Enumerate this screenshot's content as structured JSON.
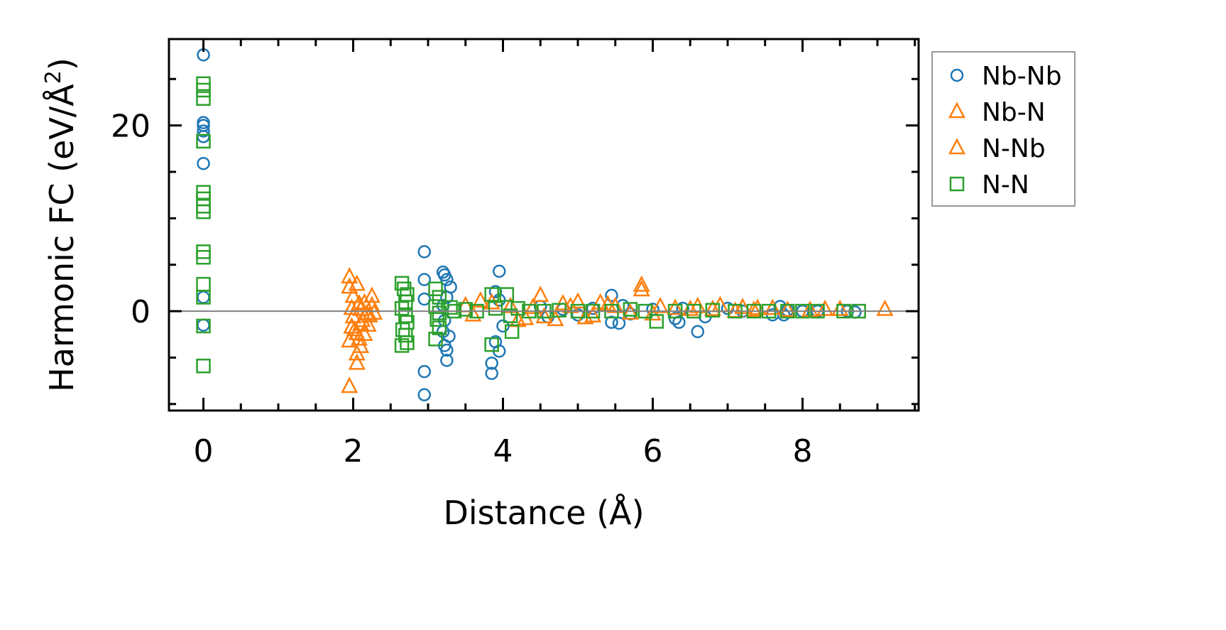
{
  "chart_data": {
    "type": "scatter",
    "title": "",
    "xlabel": "Distance (Å)",
    "ylabel": "Harmonic FC (eV/Å²)",
    "ylabel_main": "Harmonic FC (eV/Å",
    "ylabel_sup": "2",
    "ylabel_close": ")",
    "xlim": [
      -0.46,
      9.55
    ],
    "ylim": [
      -10.7,
      29.3
    ],
    "xticks": [
      0,
      2,
      4,
      6,
      8
    ],
    "xtick_labels": [
      "0",
      "2",
      "4",
      "6",
      "8"
    ],
    "yticks": [
      0,
      20
    ],
    "ytick_labels": [
      "0",
      "20"
    ],
    "x_minor_step": 0.5,
    "y_minor_step": 5,
    "zero_line": true,
    "grid": false,
    "legend_position": "outside-right-top",
    "series": [
      {
        "name": "Nb-Nb",
        "marker": "circle",
        "color": "#1f77b4",
        "points": [
          [
            0,
            27.6
          ],
          [
            0,
            20.3
          ],
          [
            0,
            20.0
          ],
          [
            0,
            19.4
          ],
          [
            0,
            18.8
          ],
          [
            0,
            15.9
          ],
          [
            0,
            1.5
          ],
          [
            0,
            -1.5
          ],
          [
            2.95,
            6.4
          ],
          [
            2.95,
            3.4
          ],
          [
            2.95,
            1.3
          ],
          [
            2.95,
            -6.5
          ],
          [
            2.95,
            -9.0
          ],
          [
            3.2,
            4.2
          ],
          [
            3.22,
            3.9
          ],
          [
            3.25,
            3.4
          ],
          [
            3.3,
            2.6
          ],
          [
            3.25,
            1.5
          ],
          [
            3.2,
            0.6
          ],
          [
            3.22,
            -1.0
          ],
          [
            3.2,
            -2.2
          ],
          [
            3.28,
            -2.7
          ],
          [
            3.22,
            -3.7
          ],
          [
            3.25,
            -4.2
          ],
          [
            3.25,
            -5.3
          ],
          [
            3.85,
            -5.6
          ],
          [
            3.85,
            -6.7
          ],
          [
            3.95,
            4.3
          ],
          [
            3.9,
            2.1
          ],
          [
            3.95,
            1.2
          ],
          [
            3.9,
            -3.3
          ],
          [
            3.95,
            -4.3
          ],
          [
            4.0,
            -1.6
          ],
          [
            4.5,
            0.5
          ],
          [
            4.6,
            -0.6
          ],
          [
            4.8,
            0.2
          ],
          [
            5.0,
            -0.4
          ],
          [
            5.2,
            0.3
          ],
          [
            5.45,
            1.7
          ],
          [
            5.45,
            -1.2
          ],
          [
            5.55,
            -1.3
          ],
          [
            5.6,
            0.6
          ],
          [
            5.7,
            -0.3
          ],
          [
            6.0,
            0.2
          ],
          [
            6.3,
            -0.8
          ],
          [
            6.35,
            -1.2
          ],
          [
            6.4,
            0.3
          ],
          [
            6.6,
            -2.2
          ],
          [
            6.7,
            -0.6
          ],
          [
            7.0,
            0.3
          ],
          [
            7.2,
            0.0
          ],
          [
            7.6,
            -0.4
          ],
          [
            7.7,
            0.5
          ],
          [
            7.75,
            -0.4
          ],
          [
            7.8,
            0.1
          ],
          [
            8.0,
            0.0
          ],
          [
            8.2,
            0.0
          ],
          [
            8.6,
            0.0
          ],
          [
            8.7,
            -0.1
          ]
        ]
      },
      {
        "name": "Nb-N",
        "marker": "triangle",
        "color": "#ff7f0e",
        "points": [
          [
            1.95,
            3.7
          ],
          [
            1.95,
            2.6
          ],
          [
            2.05,
            2.9
          ],
          [
            2.0,
            1.6
          ],
          [
            2.08,
            0.8
          ],
          [
            2.1,
            0.2
          ],
          [
            2.0,
            -0.6
          ],
          [
            2.12,
            -1.0
          ],
          [
            1.98,
            -1.7
          ],
          [
            2.05,
            -2.4
          ],
          [
            1.95,
            -3.2
          ],
          [
            2.1,
            -3.8
          ],
          [
            2.05,
            -4.6
          ],
          [
            2.05,
            -5.6
          ],
          [
            1.95,
            -8.1
          ],
          [
            2.25,
            1.6
          ],
          [
            2.25,
            0.6
          ],
          [
            2.22,
            -0.5
          ],
          [
            2.2,
            -1.5
          ],
          [
            2.15,
            -2.5
          ],
          [
            2.28,
            -0.2
          ],
          [
            3.5,
            0.6
          ],
          [
            3.7,
            1.1
          ],
          [
            4.1,
            0.5
          ],
          [
            4.3,
            -0.8
          ],
          [
            4.5,
            1.7
          ],
          [
            4.55,
            -0.6
          ],
          [
            4.8,
            0.8
          ],
          [
            5.0,
            1.0
          ],
          [
            5.1,
            -0.7
          ],
          [
            5.3,
            0.9
          ],
          [
            5.5,
            0.5
          ],
          [
            5.85,
            2.8
          ],
          [
            5.85,
            2.3
          ],
          [
            6.1,
            0.5
          ],
          [
            6.3,
            0.3
          ],
          [
            6.6,
            0.5
          ],
          [
            6.9,
            0.6
          ],
          [
            7.2,
            0.4
          ],
          [
            7.4,
            0.3
          ],
          [
            7.6,
            0.3
          ],
          [
            8.3,
            0.2
          ],
          [
            8.5,
            0.2
          ],
          [
            9.1,
            0.2
          ]
        ]
      },
      {
        "name": "N-Nb",
        "marker": "triangle",
        "color": "#ff7f0e",
        "points": [
          [
            1.98,
            0.3
          ],
          [
            2.02,
            -2.0
          ],
          [
            2.08,
            -3.0
          ],
          [
            2.15,
            0.9
          ],
          [
            2.18,
            -0.3
          ],
          [
            2.1,
            -1.4
          ],
          [
            3.6,
            -0.4
          ],
          [
            3.85,
            0.9
          ],
          [
            4.2,
            -1.0
          ],
          [
            4.4,
            0.4
          ],
          [
            4.7,
            -0.9
          ],
          [
            4.9,
            0.5
          ],
          [
            5.2,
            -0.5
          ],
          [
            5.4,
            0.7
          ],
          [
            5.7,
            -0.2
          ],
          [
            6.0,
            -0.3
          ],
          [
            6.5,
            0.2
          ],
          [
            6.8,
            0.2
          ],
          [
            7.1,
            0.0
          ],
          [
            7.35,
            0.1
          ],
          [
            7.8,
            0.1
          ],
          [
            8.1,
            0.1
          ]
        ]
      },
      {
        "name": "N-N",
        "marker": "square",
        "color": "#2ca02c",
        "points": [
          [
            0,
            24.5
          ],
          [
            0,
            23.8
          ],
          [
            0,
            22.9
          ],
          [
            0,
            18.3
          ],
          [
            0,
            12.8
          ],
          [
            0,
            12.1
          ],
          [
            0,
            11.3
          ],
          [
            0,
            10.7
          ],
          [
            0,
            6.4
          ],
          [
            0,
            5.8
          ],
          [
            0,
            2.9
          ],
          [
            0,
            1.5
          ],
          [
            0,
            -1.6
          ],
          [
            0,
            -5.9
          ],
          [
            2.65,
            3.0
          ],
          [
            2.68,
            2.4
          ],
          [
            2.72,
            1.8
          ],
          [
            2.7,
            1.0
          ],
          [
            2.65,
            0.3
          ],
          [
            2.7,
            -0.5
          ],
          [
            2.72,
            -1.2
          ],
          [
            2.66,
            -2.0
          ],
          [
            2.7,
            -2.6
          ],
          [
            2.65,
            -3.7
          ],
          [
            2.72,
            -3.4
          ],
          [
            3.1,
            2.4
          ],
          [
            3.15,
            1.5
          ],
          [
            3.1,
            0.5
          ],
          [
            3.15,
            -0.2
          ],
          [
            3.12,
            -0.9
          ],
          [
            3.15,
            -1.8
          ],
          [
            3.1,
            -3.0
          ],
          [
            3.3,
            0.4
          ],
          [
            3.35,
            0.0
          ],
          [
            3.5,
            0.2
          ],
          [
            3.65,
            0.0
          ],
          [
            3.85,
            1.8
          ],
          [
            3.85,
            -3.6
          ],
          [
            3.9,
            0.3
          ],
          [
            4.05,
            1.8
          ],
          [
            4.1,
            -0.5
          ],
          [
            4.12,
            -2.2
          ],
          [
            4.2,
            0.3
          ],
          [
            4.35,
            0.0
          ],
          [
            4.55,
            0.0
          ],
          [
            4.75,
            0.1
          ],
          [
            5.0,
            0.0
          ],
          [
            5.2,
            0.0
          ],
          [
            5.45,
            0.0
          ],
          [
            5.7,
            0.2
          ],
          [
            5.9,
            0.0
          ],
          [
            6.05,
            -1.1
          ],
          [
            6.3,
            0.0
          ],
          [
            6.55,
            0.0
          ],
          [
            6.8,
            0.1
          ],
          [
            7.1,
            0.0
          ],
          [
            7.35,
            0.0
          ],
          [
            7.55,
            0.0
          ],
          [
            7.8,
            0.0
          ],
          [
            8.0,
            0.0
          ],
          [
            8.2,
            0.0
          ],
          [
            8.55,
            0.0
          ],
          [
            8.75,
            0.0
          ]
        ]
      }
    ],
    "legend": [
      "Nb-Nb",
      "Nb-N",
      "N-Nb",
      "N-N"
    ]
  }
}
